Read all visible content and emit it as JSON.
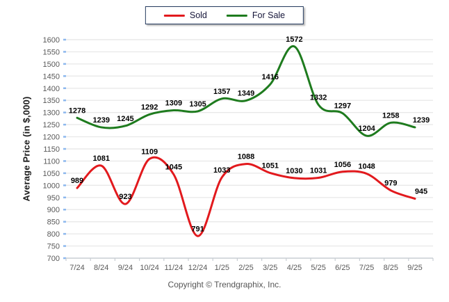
{
  "legend": {
    "items": [
      {
        "label": "Sold"
      },
      {
        "label": "For Sale"
      }
    ]
  },
  "y_axis_title": "Average Price (in $,000)",
  "footer": {
    "copyright": "Copyright © Trendgraphix, Inc."
  },
  "chart_data": {
    "type": "line",
    "categories": [
      "7/24",
      "8/24",
      "9/24",
      "10/24",
      "11/24",
      "12/24",
      "1/25",
      "2/25",
      "3/25",
      "4/25",
      "5/25",
      "6/25",
      "7/25",
      "8/25",
      "9/25"
    ],
    "series": [
      {
        "name": "Sold",
        "color": "#e2191d",
        "values": [
          989,
          1081,
          923,
          1109,
          1045,
          791,
          1033,
          1088,
          1051,
          1030,
          1031,
          1056,
          1048,
          979,
          945
        ]
      },
      {
        "name": "For Sale",
        "color": "#1e7b1e",
        "values": [
          1278,
          1239,
          1245,
          1292,
          1309,
          1305,
          1357,
          1349,
          1416,
          1572,
          1332,
          1297,
          1204,
          1258,
          1239
        ]
      }
    ],
    "title": "",
    "xlabel": "",
    "ylabel": "Average Price (in $,000)",
    "ylim": [
      700,
      1600
    ],
    "ytick_step": 50,
    "grid": true,
    "legend_position": "top-center",
    "data_labels": true,
    "line_shape": "smooth"
  },
  "colors": {
    "grid": "#e9e9e9",
    "axis_line": "#c8cdd3",
    "y_tick_mark": "#8db8ee",
    "tick_label": "#595959",
    "data_label": "#000000",
    "legend_border": "#243a5e"
  }
}
